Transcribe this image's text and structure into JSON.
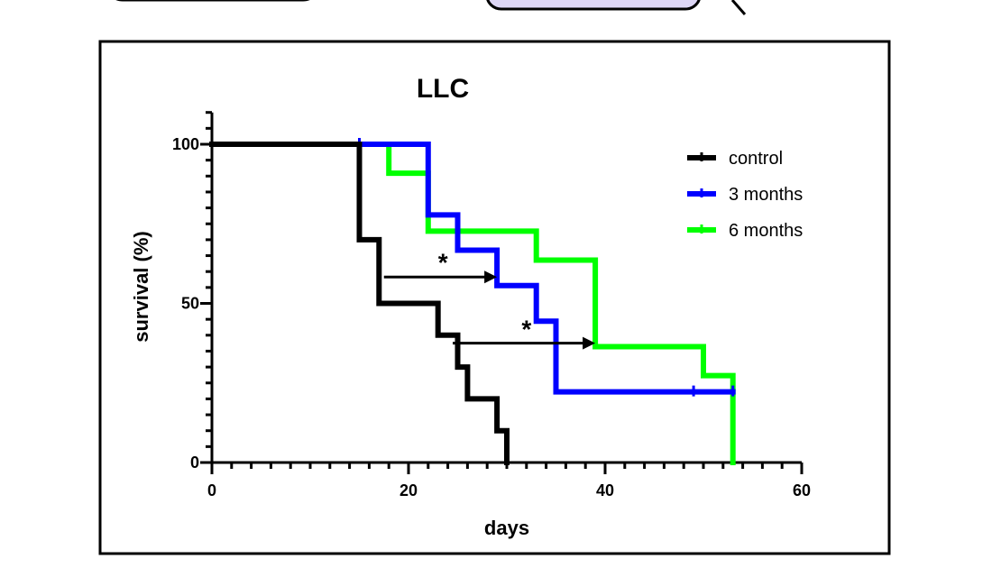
{
  "chart_data": {
    "type": "line",
    "subtype": "kaplan-meier-step",
    "title": "LLC",
    "xlabel": "days",
    "ylabel": "survival (%)",
    "xlim": [
      0,
      60
    ],
    "ylim": [
      0,
      110
    ],
    "x_ticks": [
      0,
      20,
      40,
      60
    ],
    "y_ticks": [
      0,
      50,
      100
    ],
    "x_minor_step": 2,
    "y_minor_step": 5,
    "grid": false,
    "legend_position": "top-right",
    "series": [
      {
        "name": "control",
        "color": "#000000",
        "steps": [
          [
            0,
            100
          ],
          [
            15,
            70
          ],
          [
            17,
            50
          ],
          [
            23,
            40
          ],
          [
            25,
            30
          ],
          [
            26,
            20
          ],
          [
            29,
            10
          ],
          [
            30,
            0
          ]
        ],
        "censored": []
      },
      {
        "name": "3 months",
        "color": "#0000ff",
        "steps": [
          [
            0,
            100
          ],
          [
            22,
            77.8
          ],
          [
            25,
            66.7
          ],
          [
            29,
            55.6
          ],
          [
            33,
            44.4
          ],
          [
            35,
            22.2
          ],
          [
            53,
            22.2
          ]
        ],
        "censored": [
          [
            15,
            100
          ],
          [
            49,
            22.2
          ],
          [
            53,
            22.2
          ]
        ]
      },
      {
        "name": "6 months",
        "color": "#00ff00",
        "steps": [
          [
            0,
            100
          ],
          [
            18,
            90.9
          ],
          [
            22,
            72.7
          ],
          [
            33,
            63.6
          ],
          [
            39,
            36.4
          ],
          [
            50,
            27.3
          ],
          [
            53,
            0
          ]
        ],
        "censored": []
      }
    ],
    "annotations": [
      {
        "text": "*",
        "arrow_from": [
          17.5,
          58.3
        ],
        "arrow_to": [
          29,
          58.3
        ],
        "label_at": [
          23.5,
          63
        ]
      },
      {
        "text": "*",
        "arrow_from": [
          24.5,
          37.5
        ],
        "arrow_to": [
          39,
          37.5
        ],
        "label_at": [
          32,
          42
        ]
      }
    ]
  }
}
